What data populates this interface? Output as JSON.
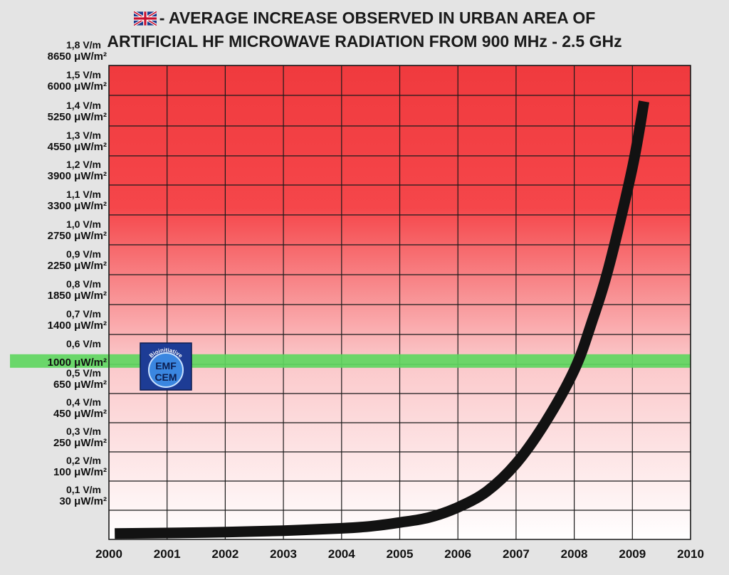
{
  "chart_data": {
    "type": "line",
    "title_line1": "- AVERAGE INCREASE OBSERVED IN URBAN AREA OF",
    "title_line2": "ARTIFICIAL HF MICROWAVE RADIATION FROM 900 MHz - 2.5 GHz",
    "xlabel": "",
    "ylabel": "",
    "xlim": [
      2000,
      2010
    ],
    "x_ticks": [
      "2000",
      "2001",
      "2002",
      "2003",
      "2004",
      "2005",
      "2006",
      "2007",
      "2008",
      "2009",
      "2010"
    ],
    "ylim": [
      0,
      1.8
    ],
    "y_ticks": [
      {
        "v": 0.1,
        "field": "0,1 V/m",
        "power": "30 μW/m²"
      },
      {
        "v": 0.2,
        "field": "0,2 V/m",
        "power": "100 μW/m²"
      },
      {
        "v": 0.3,
        "field": "0,3 V/m",
        "power": "250 μW/m²"
      },
      {
        "v": 0.4,
        "field": "0,4 V/m",
        "power": "450 μW/m²"
      },
      {
        "v": 0.5,
        "field": "0,5 V/m",
        "power": "650 μW/m²"
      },
      {
        "v": 0.6,
        "field": "0,6 V/m",
        "power": ""
      },
      {
        "v": 0.7,
        "field": "0,7 V/m",
        "power": "1400 μW/m²"
      },
      {
        "v": 0.8,
        "field": "0,8 V/m",
        "power": "1850 μW/m²"
      },
      {
        "v": 0.9,
        "field": "0,9 V/m",
        "power": "2250 μW/m²"
      },
      {
        "v": 1.0,
        "field": "1,0 V/m",
        "power": "2750 μW/m²"
      },
      {
        "v": 1.1,
        "field": "1,1 V/m",
        "power": "3300 μW/m²"
      },
      {
        "v": 1.2,
        "field": "1,2 V/m",
        "power": "3900 μW/m²"
      },
      {
        "v": 1.3,
        "field": "1,3 V/m",
        "power": "4550 μW/m²"
      },
      {
        "v": 1.4,
        "field": "1,4 V/m",
        "power": "5250 μW/m²"
      },
      {
        "v": 1.5,
        "field": "1,5 V/m",
        "power": "6000 μW/m²"
      },
      {
        "v": 1.8,
        "field": "1,8 V/m",
        "power": "8650 μW/m²"
      }
    ],
    "threshold": {
      "v": 0.61,
      "label": "1000 μW/m²",
      "color": "#5fd65f"
    },
    "grid": true,
    "series": [
      {
        "color": "#121212",
        "x": [
          2000.1,
          2001,
          2002,
          2003,
          2004,
          2004.5,
          2005,
          2005.5,
          2006,
          2006.5,
          2007,
          2007.5,
          2008,
          2008.3,
          2008.6,
          2009,
          2009.2
        ],
        "y": [
          0.02,
          0.022,
          0.025,
          0.03,
          0.038,
          0.045,
          0.058,
          0.075,
          0.11,
          0.165,
          0.26,
          0.4,
          0.58,
          0.74,
          0.93,
          1.26,
          1.48
        ]
      }
    ],
    "colors": {
      "top": "#f03a3e",
      "bottom": "#ffffff",
      "grid": "#1a1a1a"
    }
  },
  "logo": {
    "arc_text": "Bioinitiative",
    "line1": "EMF",
    "line2": "CEM"
  }
}
